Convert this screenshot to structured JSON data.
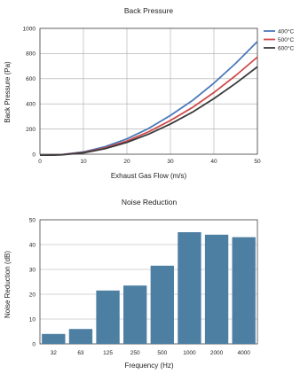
{
  "chart_data": [
    {
      "type": "line",
      "title": "Back Pressure",
      "xlabel": "Exhaust Gas Flow (m/s)",
      "ylabel": "Back Pressure (Pa)",
      "xlim": [
        0,
        50
      ],
      "ylim": [
        0,
        1000
      ],
      "xticks": [
        0,
        10,
        20,
        30,
        40,
        50
      ],
      "yticks": [
        0,
        200,
        400,
        600,
        800,
        1000
      ],
      "grid": true,
      "legend_position": "top-right outside",
      "x": [
        0,
        5,
        10,
        15,
        20,
        25,
        30,
        35,
        40,
        45,
        50
      ],
      "series": [
        {
          "name": "400°C",
          "color": "#4a78b8",
          "values": [
            -10,
            -3,
            18,
            60,
            122,
            205,
            308,
            425,
            565,
            722,
            895
          ]
        },
        {
          "name": "500°C",
          "color": "#d04a4a",
          "values": [
            -10,
            -4,
            14,
            50,
            105,
            178,
            268,
            370,
            490,
            625,
            772
          ]
        },
        {
          "name": "600°C",
          "color": "#3a3a3a",
          "values": [
            -10,
            -5,
            11,
            44,
            94,
            160,
            240,
            333,
            442,
            563,
            695
          ]
        }
      ]
    },
    {
      "type": "bar",
      "title": "Noise Reduction",
      "xlabel": "Frequency (Hz)",
      "ylabel": "Noise Reduction (dB)",
      "ylim": [
        0,
        50
      ],
      "yticks": [
        0,
        10,
        20,
        30,
        40,
        50
      ],
      "grid": true,
      "bar_color": "#4d7fa3",
      "categories": [
        "32",
        "63",
        "125",
        "250",
        "500",
        "1000",
        "2000",
        "4000"
      ],
      "values": [
        4,
        6,
        21.5,
        23.5,
        31.5,
        45,
        44,
        43
      ]
    }
  ]
}
